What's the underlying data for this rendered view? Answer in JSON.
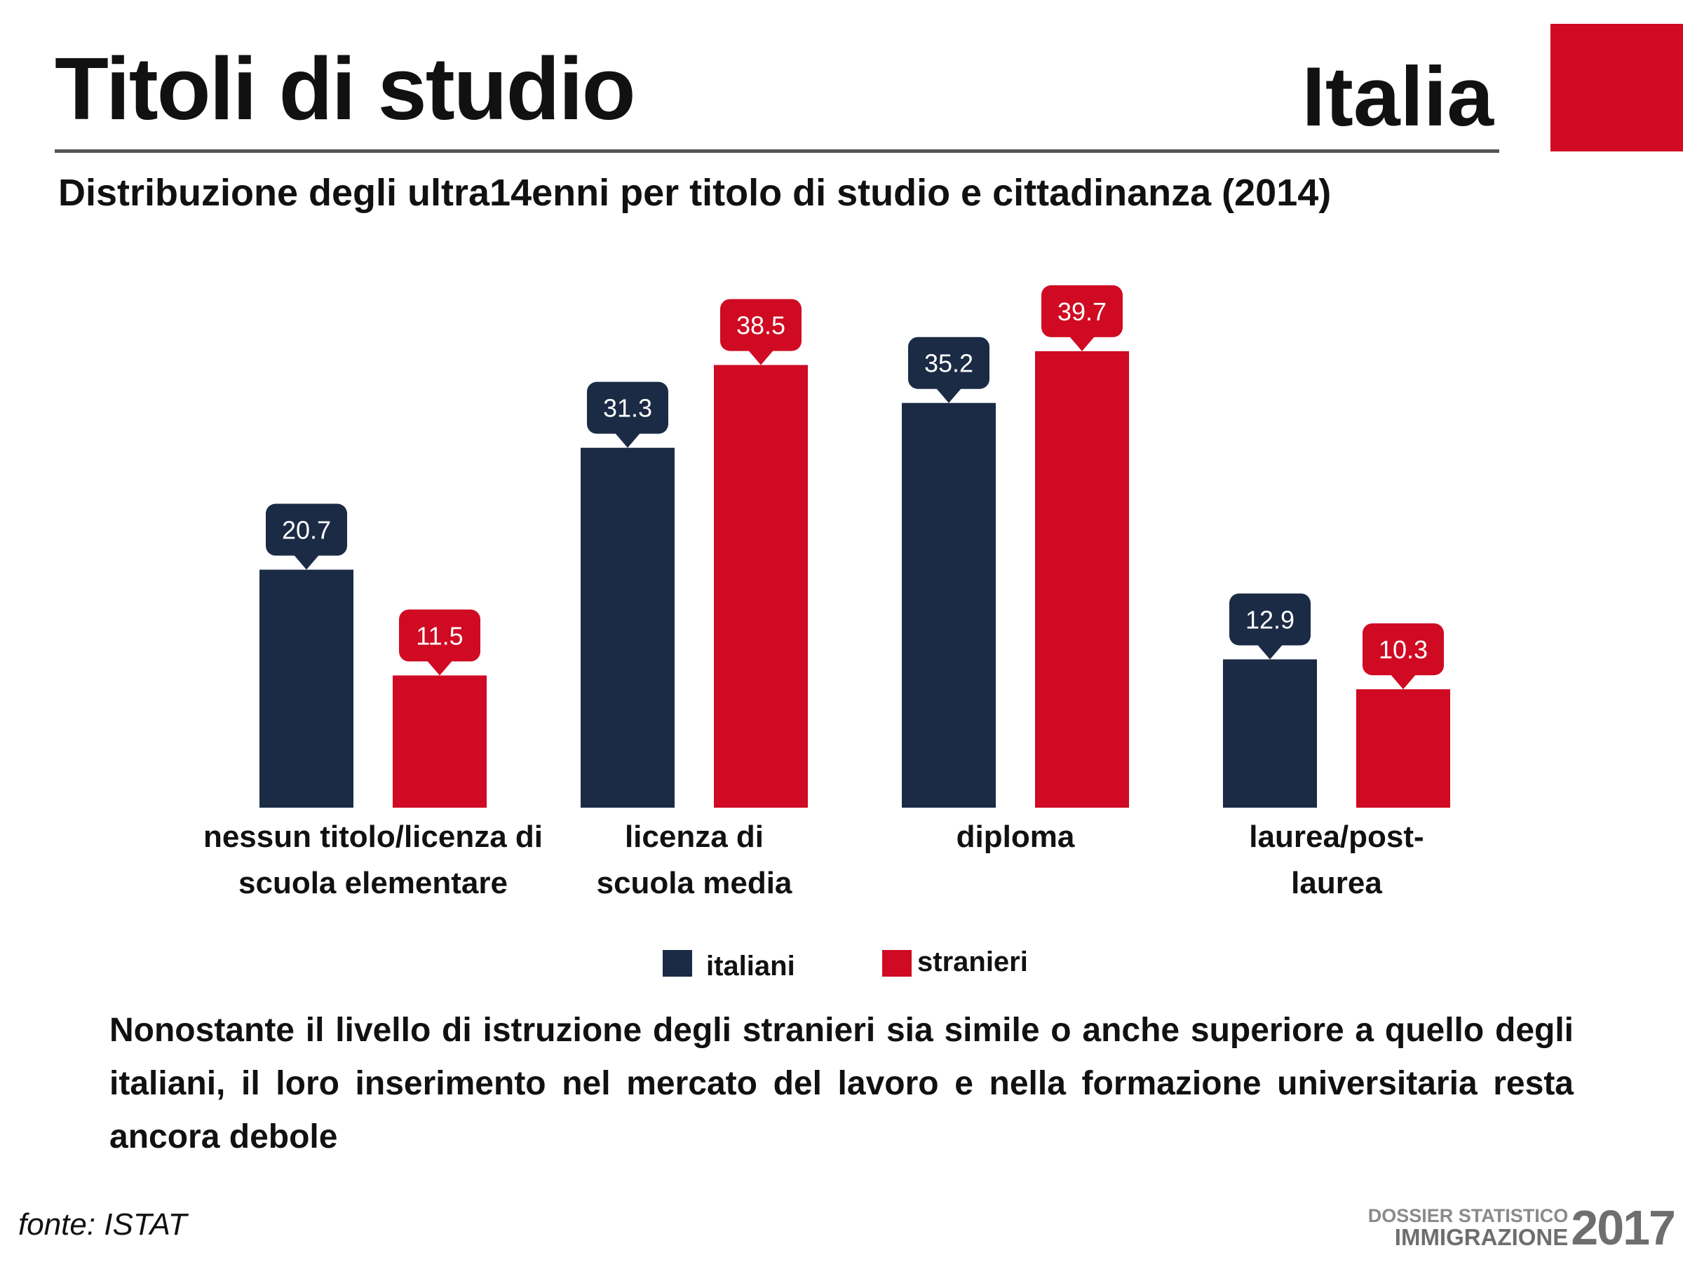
{
  "header": {
    "title": "Titoli di studio",
    "region": "Italia",
    "subtitle": "Distribuzione degli ultra14enni per titolo di studio e cittadinanza (2014)"
  },
  "colors": {
    "italiani": "#1b2b45",
    "stranieri": "#cf0a22",
    "accent": "#cf0a22"
  },
  "chart_data": {
    "type": "bar",
    "categories": [
      [
        "nessun titolo/licenza di",
        "scuola elementare"
      ],
      [
        "licenza di",
        "scuola media"
      ],
      [
        "diploma"
      ],
      [
        "laurea/post-",
        "laurea"
      ]
    ],
    "series": [
      {
        "name": "italiani",
        "values": [
          20.7,
          31.3,
          35.2,
          12.9
        ]
      },
      {
        "name": "stranieri",
        "values": [
          11.5,
          38.5,
          39.7,
          10.3
        ]
      }
    ],
    "ylim": [
      0,
      45
    ],
    "grid": false,
    "legend_position": "bottom",
    "data_labels": true
  },
  "legend": [
    {
      "label": "italiani",
      "color": "#1b2b45"
    },
    {
      "label": "stranieri",
      "color": "#cf0a22"
    }
  ],
  "note": "Nonostante il livello di istruzione degli stranieri sia simile o anche superiore a quello degli italiani, il loro inserimento nel mercato del lavoro e nella formazione universitaria resta ancora debole",
  "source": "fonte: ISTAT",
  "logo": {
    "line1": "DOSSIER STATISTICO",
    "line2": "IMMIGRAZIONE",
    "year": "2017"
  }
}
